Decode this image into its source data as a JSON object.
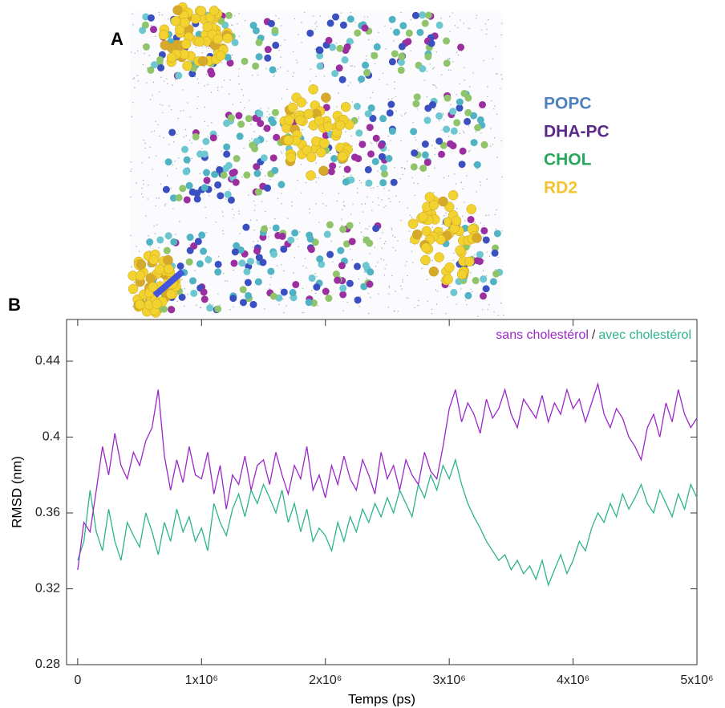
{
  "panel_a": {
    "label": "A",
    "legend": [
      {
        "name": "POPC",
        "color": "#4f81bd"
      },
      {
        "name": "DHA-PC",
        "color": "#5b2a86"
      },
      {
        "name": "CHOL",
        "color": "#27a85a"
      },
      {
        "name": "RD2",
        "color": "#f2c530"
      }
    ]
  },
  "panel_b_label": "B",
  "chart_data": {
    "type": "line",
    "xlabel": "Temps (ps)",
    "ylabel": "RMSD (nm)",
    "legend_separator": "/",
    "x": [
      0,
      50000,
      100000,
      150000,
      200000,
      250000,
      300000,
      350000,
      400000,
      450000,
      500000,
      550000,
      600000,
      650000,
      700000,
      750000,
      800000,
      850000,
      900000,
      950000,
      1000000,
      1050000,
      1100000,
      1150000,
      1200000,
      1250000,
      1300000,
      1350000,
      1400000,
      1450000,
      1500000,
      1550000,
      1600000,
      1650000,
      1700000,
      1750000,
      1800000,
      1850000,
      1900000,
      1950000,
      2000000,
      2050000,
      2100000,
      2150000,
      2200000,
      2250000,
      2300000,
      2350000,
      2400000,
      2450000,
      2500000,
      2550000,
      2600000,
      2650000,
      2700000,
      2750000,
      2800000,
      2850000,
      2900000,
      2950000,
      3000000,
      3050000,
      3100000,
      3150000,
      3200000,
      3250000,
      3300000,
      3350000,
      3400000,
      3450000,
      3500000,
      3550000,
      3600000,
      3650000,
      3700000,
      3750000,
      3800000,
      3850000,
      3900000,
      3950000,
      4000000,
      4050000,
      4100000,
      4150000,
      4200000,
      4250000,
      4300000,
      4350000,
      4400000,
      4450000,
      4500000,
      4550000,
      4600000,
      4650000,
      4700000,
      4750000,
      4800000,
      4850000,
      4900000,
      4950000,
      5000000
    ],
    "series": [
      {
        "name": "sans cholestérol",
        "color": "#9b27c9",
        "values": [
          0.33,
          0.355,
          0.35,
          0.372,
          0.395,
          0.38,
          0.402,
          0.385,
          0.378,
          0.392,
          0.385,
          0.398,
          0.405,
          0.425,
          0.39,
          0.372,
          0.388,
          0.376,
          0.395,
          0.38,
          0.378,
          0.392,
          0.37,
          0.385,
          0.362,
          0.38,
          0.375,
          0.39,
          0.372,
          0.385,
          0.388,
          0.375,
          0.392,
          0.38,
          0.37,
          0.385,
          0.378,
          0.395,
          0.372,
          0.38,
          0.368,
          0.385,
          0.375,
          0.39,
          0.378,
          0.372,
          0.388,
          0.38,
          0.37,
          0.392,
          0.378,
          0.385,
          0.372,
          0.388,
          0.38,
          0.375,
          0.392,
          0.382,
          0.378,
          0.395,
          0.415,
          0.425,
          0.408,
          0.418,
          0.412,
          0.402,
          0.42,
          0.41,
          0.415,
          0.425,
          0.412,
          0.405,
          0.42,
          0.415,
          0.41,
          0.422,
          0.408,
          0.418,
          0.412,
          0.425,
          0.415,
          0.42,
          0.408,
          0.418,
          0.428,
          0.412,
          0.405,
          0.415,
          0.41,
          0.4,
          0.395,
          0.388,
          0.405,
          0.412,
          0.4,
          0.418,
          0.408,
          0.425,
          0.412,
          0.405,
          0.41
        ]
      },
      {
        "name": "avec cholestérol",
        "color": "#2db38e",
        "values": [
          0.335,
          0.345,
          0.372,
          0.35,
          0.34,
          0.362,
          0.345,
          0.335,
          0.355,
          0.348,
          0.342,
          0.36,
          0.35,
          0.338,
          0.355,
          0.345,
          0.362,
          0.35,
          0.358,
          0.345,
          0.352,
          0.34,
          0.365,
          0.355,
          0.348,
          0.362,
          0.37,
          0.358,
          0.372,
          0.365,
          0.375,
          0.368,
          0.36,
          0.372,
          0.355,
          0.365,
          0.35,
          0.362,
          0.345,
          0.352,
          0.348,
          0.34,
          0.355,
          0.345,
          0.358,
          0.35,
          0.362,
          0.355,
          0.365,
          0.358,
          0.368,
          0.36,
          0.372,
          0.365,
          0.358,
          0.375,
          0.368,
          0.38,
          0.372,
          0.385,
          0.378,
          0.388,
          0.375,
          0.365,
          0.358,
          0.352,
          0.345,
          0.34,
          0.335,
          0.338,
          0.33,
          0.335,
          0.328,
          0.332,
          0.325,
          0.335,
          0.322,
          0.33,
          0.338,
          0.328,
          0.335,
          0.345,
          0.34,
          0.352,
          0.36,
          0.355,
          0.365,
          0.358,
          0.37,
          0.362,
          0.368,
          0.375,
          0.365,
          0.36,
          0.372,
          0.365,
          0.358,
          0.37,
          0.362,
          0.375,
          0.368
        ]
      }
    ],
    "xlim": [
      -90000,
      5000000
    ],
    "xticks": [
      0,
      {
        "value": 1000000,
        "label": "1x10⁶"
      },
      {
        "value": 2000000,
        "label": "2x10⁶"
      },
      {
        "value": 3000000,
        "label": "3x10⁶"
      },
      {
        "value": 4000000,
        "label": "4x10⁶"
      },
      {
        "value": 5000000,
        "label": "5x10⁶"
      }
    ],
    "ylim": [
      0.28,
      0.462
    ],
    "yticks": [
      0.28,
      0.32,
      0.36,
      0.4,
      0.44
    ]
  }
}
